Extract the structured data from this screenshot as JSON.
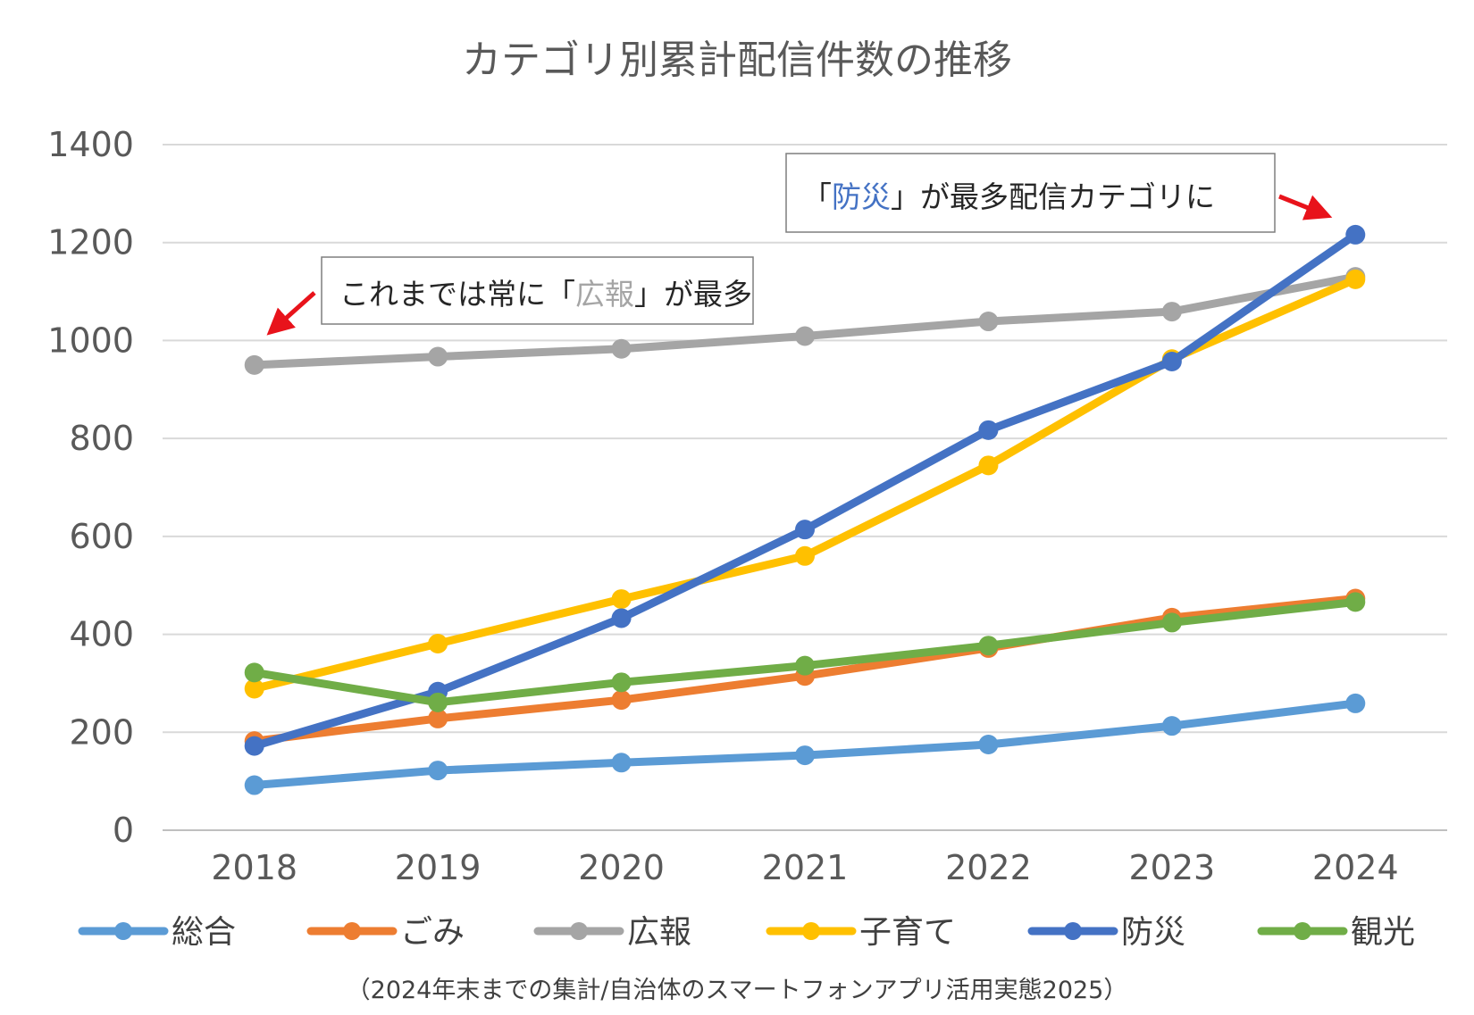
{
  "chart_data": {
    "type": "line",
    "title": "カテゴリ別累計配信件数の推移",
    "xlabel": "",
    "ylabel": "",
    "x": [
      "2018",
      "2019",
      "2020",
      "2021",
      "2022",
      "2023",
      "2024"
    ],
    "ylim": [
      0,
      1400
    ],
    "yticks": [
      "0",
      "200",
      "400",
      "600",
      "800",
      "1000",
      "1200",
      "1400"
    ],
    "grid": true,
    "legend_position": "bottom",
    "series": [
      {
        "name": "総合",
        "color": "#5B9BD5",
        "values": [
          92,
          122,
          138,
          153,
          175,
          213,
          259
        ]
      },
      {
        "name": "ごみ",
        "color": "#ED7D31",
        "values": [
          182,
          228,
          266,
          315,
          372,
          434,
          473
        ]
      },
      {
        "name": "広報",
        "color": "#A5A5A5",
        "values": [
          950,
          967,
          983,
          1009,
          1039,
          1059,
          1130
        ]
      },
      {
        "name": "子育て",
        "color": "#FFC000",
        "values": [
          289,
          381,
          472,
          560,
          745,
          962,
          1125
        ]
      },
      {
        "name": "防災",
        "color": "#4472C4",
        "values": [
          172,
          283,
          433,
          614,
          817,
          957,
          1216
        ]
      },
      {
        "name": "観光",
        "color": "#70AD47",
        "values": [
          322,
          261,
          302,
          336,
          377,
          424,
          466
        ]
      }
    ],
    "annotations": [
      {
        "prefix": "これまでは常に「",
        "highlight": "広報",
        "suffix": "」が最多",
        "highlight_color": "#A5A5A5",
        "arrow_color": "#E8131B"
      },
      {
        "prefix": "「",
        "highlight": "防災",
        "suffix": "」が最多配信カテゴリに",
        "highlight_color": "#4472C4",
        "arrow_color": "#E8131B"
      }
    ],
    "source_note": "（2024年末までの集計/自治体のスマートフォンアプリ活用実態2025）"
  }
}
